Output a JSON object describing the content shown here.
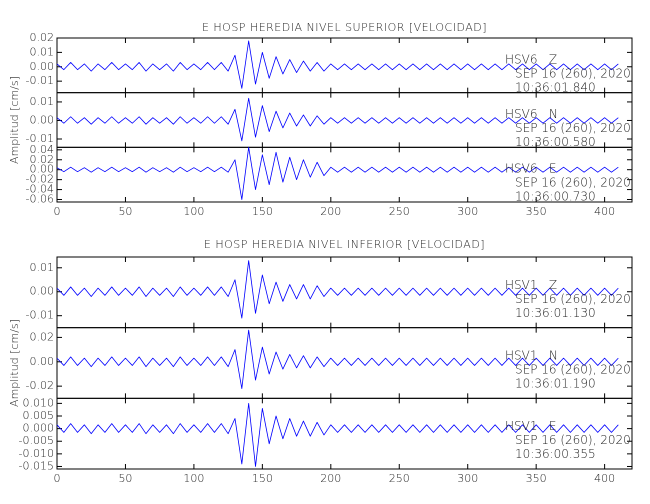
{
  "chart_data": [
    {
      "type": "line",
      "title": "E HOSP HEREDIA NIVEL SUPERIOR [VELOCIDAD]",
      "y_label": "Amplitud [cm/s]",
      "xlim": [
        0,
        420
      ],
      "xticks": [
        0,
        50,
        100,
        150,
        200,
        250,
        300,
        350,
        400
      ],
      "x": [
        0,
        5,
        10,
        15,
        20,
        25,
        30,
        35,
        40,
        45,
        50,
        55,
        60,
        65,
        70,
        75,
        80,
        85,
        90,
        95,
        100,
        105,
        110,
        115,
        120,
        125,
        130,
        135,
        140,
        145,
        150,
        155,
        160,
        165,
        170,
        175,
        180,
        185,
        190,
        195,
        200,
        205,
        210,
        215,
        220,
        225,
        230,
        235,
        240,
        245,
        250,
        255,
        260,
        265,
        270,
        275,
        280,
        285,
        290,
        295,
        300,
        305,
        310,
        315,
        320,
        325,
        330,
        335,
        340,
        345,
        350,
        355,
        360,
        365,
        370,
        375,
        380,
        385,
        390,
        395,
        400,
        405,
        410
      ],
      "subplots": [
        {
          "ylim": [
            -0.018,
            0.02
          ],
          "yticks": [
            -0.01,
            {
              "value": 0,
              "label": "0.00"
            },
            0.01,
            0.02
          ],
          "annotations": [
            "SEP 16 (260), 2020",
            "10:36:01.840"
          ],
          "series": [
            {
              "name": "HSV6   Z",
              "color": "#0000ff",
              "values": [
                0.002,
                -0.002,
                0.003,
                -0.002,
                0.002,
                -0.003,
                0.002,
                -0.002,
                0.003,
                -0.002,
                0.002,
                -0.002,
                0.003,
                -0.003,
                0.002,
                -0.002,
                0.002,
                -0.003,
                0.003,
                -0.002,
                0.002,
                -0.002,
                0.003,
                -0.002,
                0.003,
                -0.003,
                0.008,
                -0.015,
                0.018,
                -0.012,
                0.01,
                -0.008,
                0.007,
                -0.005,
                0.005,
                -0.004,
                0.004,
                -0.003,
                0.003,
                -0.003,
                0.002,
                -0.002,
                0.002,
                -0.002,
                0.002,
                -0.002,
                0.002,
                -0.002,
                0.002,
                -0.002,
                0.002,
                -0.002,
                0.002,
                -0.002,
                0.002,
                -0.002,
                0.002,
                -0.002,
                0.002,
                -0.002,
                0.002,
                -0.002,
                0.002,
                -0.002,
                0.002,
                -0.002,
                0.002,
                -0.002,
                0.002,
                -0.002,
                0.002,
                -0.002,
                0.002,
                -0.002,
                0.002,
                -0.002,
                0.002,
                -0.002,
                0.002,
                -0.002,
                0.002,
                -0.002,
                0.002
              ]
            }
          ]
        },
        {
          "ylim": [
            -0.0145,
            0.015
          ],
          "yticks": [
            -0.01,
            {
              "value": 0,
              "label": "0.00"
            },
            0.01
          ],
          "annotations": [
            "SEP 16 (260), 2020",
            "10:36:00.580"
          ],
          "series": [
            {
              "name": "HSV6   N",
              "color": "#0000ff",
              "values": [
                0.0015,
                -0.0015,
                0.002,
                -0.0015,
                0.0015,
                -0.002,
                0.0015,
                -0.0015,
                0.002,
                -0.0015,
                0.0015,
                -0.0015,
                0.002,
                -0.002,
                0.0015,
                -0.0015,
                0.0015,
                -0.002,
                0.002,
                -0.0015,
                0.0015,
                -0.0015,
                0.002,
                -0.0015,
                0.002,
                -0.002,
                0.006,
                -0.011,
                0.012,
                -0.009,
                0.008,
                -0.006,
                0.005,
                -0.004,
                0.004,
                -0.003,
                0.003,
                -0.003,
                0.0025,
                -0.002,
                0.0015,
                -0.0015,
                0.0015,
                -0.0015,
                0.0015,
                -0.0015,
                0.0015,
                -0.0015,
                0.0015,
                -0.0015,
                0.0015,
                -0.0015,
                0.0015,
                -0.0015,
                0.0015,
                -0.0015,
                0.0015,
                -0.0015,
                0.0015,
                -0.0015,
                0.0015,
                -0.0015,
                0.0015,
                -0.0015,
                0.0015,
                -0.0015,
                0.0015,
                -0.0015,
                0.0015,
                -0.0015,
                0.0015,
                -0.0015,
                0.0015,
                -0.0015,
                0.0015,
                -0.0015,
                0.0015,
                -0.0015,
                0.0015,
                -0.0015,
                0.0015,
                -0.0015,
                0.0015
              ]
            }
          ]
        },
        {
          "ylim": [
            -0.065,
            0.045
          ],
          "yticks": [
            -0.06,
            -0.04,
            -0.02,
            {
              "value": 0,
              "label": "0.00"
            },
            0.02,
            0.04
          ],
          "annotations": [
            "SEP 16 (260), 2020",
            "10:36:00.730"
          ],
          "series": [
            {
              "name": "HSV6   E",
              "color": "#0000ff",
              "values": [
                0.004,
                -0.004,
                0.005,
                -0.004,
                0.004,
                -0.005,
                0.004,
                -0.004,
                0.005,
                -0.004,
                0.004,
                -0.004,
                0.005,
                -0.005,
                0.004,
                -0.004,
                0.004,
                -0.005,
                0.005,
                -0.004,
                0.004,
                -0.004,
                0.005,
                -0.004,
                0.005,
                -0.005,
                0.02,
                -0.06,
                0.045,
                -0.04,
                0.03,
                -0.03,
                0.035,
                -0.025,
                0.025,
                -0.02,
                0.02,
                -0.015,
                0.015,
                -0.012,
                0.005,
                -0.005,
                0.005,
                -0.005,
                0.005,
                -0.005,
                0.005,
                -0.005,
                0.005,
                -0.005,
                0.005,
                -0.005,
                0.005,
                -0.005,
                0.005,
                -0.005,
                0.005,
                -0.005,
                0.005,
                -0.005,
                0.005,
                -0.005,
                0.005,
                -0.005,
                0.005,
                -0.005,
                0.005,
                -0.005,
                0.005,
                -0.005,
                0.005,
                -0.005,
                0.005,
                -0.005,
                0.005,
                -0.005,
                0.005,
                -0.005,
                0.005,
                -0.005,
                0.005,
                -0.005,
                0.005
              ]
            }
          ]
        }
      ]
    },
    {
      "type": "line",
      "title": "E HOSP HEREDIA NIVEL INFERIOR [VELOCIDAD]",
      "y_label": "Amplitud [cm/s]",
      "xlim": [
        0,
        420
      ],
      "xticks": [
        0,
        50,
        100,
        150,
        200,
        250,
        300,
        350,
        400
      ],
      "x": [
        0,
        5,
        10,
        15,
        20,
        25,
        30,
        35,
        40,
        45,
        50,
        55,
        60,
        65,
        70,
        75,
        80,
        85,
        90,
        95,
        100,
        105,
        110,
        115,
        120,
        125,
        130,
        135,
        140,
        145,
        150,
        155,
        160,
        165,
        170,
        175,
        180,
        185,
        190,
        195,
        200,
        205,
        210,
        215,
        220,
        225,
        230,
        235,
        240,
        245,
        250,
        255,
        260,
        265,
        270,
        275,
        280,
        285,
        290,
        295,
        300,
        305,
        310,
        315,
        320,
        325,
        330,
        335,
        340,
        345,
        350,
        355,
        360,
        365,
        370,
        375,
        380,
        385,
        390,
        395,
        400,
        405,
        410
      ],
      "subplots": [
        {
          "ylim": [
            -0.015,
            0.0145
          ],
          "yticks": [
            -0.01,
            {
              "value": 0,
              "label": "0.00"
            },
            0.01
          ],
          "annotations": [
            "SEP 16 (260), 2020",
            "10:36:01.130"
          ],
          "series": [
            {
              "name": "HSV1   Z",
              "color": "#0000ff",
              "values": [
                0.0015,
                -0.0015,
                0.002,
                -0.0015,
                0.0015,
                -0.002,
                0.0015,
                -0.0015,
                0.002,
                -0.0015,
                0.0015,
                -0.0015,
                0.002,
                -0.002,
                0.0015,
                -0.0015,
                0.0015,
                -0.002,
                0.002,
                -0.0015,
                0.0015,
                -0.0015,
                0.002,
                -0.0015,
                0.002,
                -0.002,
                0.005,
                -0.011,
                0.013,
                -0.009,
                0.007,
                -0.005,
                0.004,
                -0.004,
                0.003,
                -0.003,
                0.003,
                -0.003,
                0.0025,
                -0.002,
                0.0015,
                -0.0015,
                0.0015,
                -0.0015,
                0.0015,
                -0.0015,
                0.0015,
                -0.0015,
                0.0015,
                -0.0015,
                0.0015,
                -0.0015,
                0.0015,
                -0.0015,
                0.0015,
                -0.0015,
                0.0015,
                -0.0015,
                0.0015,
                -0.0015,
                0.0015,
                -0.0015,
                0.0015,
                -0.0015,
                0.0015,
                -0.0015,
                0.0015,
                -0.0015,
                0.0015,
                -0.0015,
                0.0015,
                -0.0015,
                0.0015,
                -0.0015,
                0.0015,
                -0.0015,
                0.0015,
                -0.0015,
                0.0015,
                -0.0015,
                0.0015,
                -0.0015,
                0.0015
              ]
            }
          ]
        },
        {
          "ylim": [
            -0.03,
            0.028
          ],
          "yticks": [
            -0.02,
            {
              "value": 0,
              "label": "0.00"
            },
            0.02
          ],
          "annotations": [
            "SEP 16 (260), 2020",
            "10:36:01.190"
          ],
          "series": [
            {
              "name": "HSV1   N",
              "color": "#0000ff",
              "values": [
                0.003,
                -0.003,
                0.004,
                -0.003,
                0.003,
                -0.004,
                0.003,
                -0.003,
                0.004,
                -0.003,
                0.003,
                -0.003,
                0.004,
                -0.004,
                0.003,
                -0.003,
                0.003,
                -0.004,
                0.004,
                -0.003,
                0.003,
                -0.003,
                0.004,
                -0.003,
                0.004,
                -0.004,
                0.01,
                -0.022,
                0.026,
                -0.015,
                0.012,
                -0.01,
                0.008,
                -0.006,
                0.006,
                -0.005,
                0.005,
                -0.005,
                0.004,
                -0.004,
                0.003,
                -0.003,
                0.003,
                -0.003,
                0.003,
                -0.003,
                0.003,
                -0.003,
                0.003,
                -0.003,
                0.003,
                -0.003,
                0.003,
                -0.003,
                0.003,
                -0.003,
                0.003,
                -0.003,
                0.003,
                -0.003,
                0.003,
                -0.003,
                0.003,
                -0.003,
                0.003,
                -0.003,
                0.003,
                -0.003,
                0.003,
                -0.003,
                0.003,
                -0.003,
                0.003,
                -0.003,
                0.003,
                -0.003,
                0.003,
                -0.003,
                0.003,
                -0.003,
                0.003,
                -0.003,
                0.003
              ]
            }
          ]
        },
        {
          "ylim": [
            -0.016,
            0.012
          ],
          "yticks": [
            -0.015,
            {
              "value": -0.01,
              "label": "-0.010"
            },
            -0.005,
            {
              "value": 0,
              "label": "0.000"
            },
            0.005,
            {
              "value": 0.01,
              "label": "0.010"
            }
          ],
          "annotations": [
            "SEP 16 (260), 2020",
            "10:36:00.355"
          ],
          "series": [
            {
              "name": "HSV1   E",
              "color": "#0000ff",
              "values": [
                0.0015,
                -0.0015,
                0.002,
                -0.0015,
                0.0015,
                -0.002,
                0.0015,
                -0.0015,
                0.002,
                -0.0015,
                0.0015,
                -0.0015,
                0.002,
                -0.002,
                0.0015,
                -0.0015,
                0.0015,
                -0.002,
                0.002,
                -0.0015,
                0.0015,
                -0.0015,
                0.002,
                -0.0015,
                0.002,
                -0.002,
                0.004,
                -0.014,
                0.01,
                -0.015,
                0.008,
                -0.006,
                0.005,
                -0.004,
                0.004,
                -0.003,
                0.003,
                -0.003,
                0.0025,
                -0.0025,
                0.0015,
                -0.0015,
                0.0015,
                -0.0015,
                0.0015,
                -0.0015,
                0.0015,
                -0.0015,
                0.0015,
                -0.0015,
                0.0015,
                -0.0015,
                0.0015,
                -0.0015,
                0.0015,
                -0.0015,
                0.0015,
                -0.0015,
                0.0015,
                -0.0015,
                0.0015,
                -0.0015,
                0.0015,
                -0.0015,
                0.0015,
                -0.0015,
                0.0015,
                -0.0015,
                0.0015,
                -0.0015,
                0.0015,
                -0.0015,
                0.0015,
                -0.0015,
                0.0015,
                -0.0015,
                0.0015,
                -0.0015,
                0.0015,
                -0.0015,
                0.0015,
                -0.0015,
                0.0015
              ]
            }
          ]
        }
      ]
    }
  ]
}
